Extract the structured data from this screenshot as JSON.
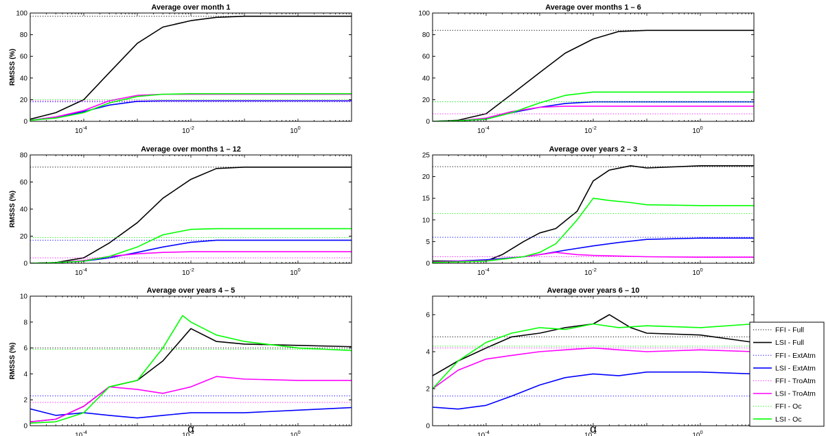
{
  "figure": {
    "xlabel": "α",
    "ylabel": "RMSSS (%)"
  },
  "legend": [
    {
      "label": "FFI - Full",
      "color": "#000000",
      "style": "dotted"
    },
    {
      "label": "LSI - Full",
      "color": "#000000",
      "style": "solid"
    },
    {
      "label": "FFI - ExtAtm",
      "color": "#0000ff",
      "style": "dotted"
    },
    {
      "label": "LSI - ExtAtm",
      "color": "#0000ff",
      "style": "solid"
    },
    {
      "label": "FFI - TroAtm",
      "color": "#ff00ff",
      "style": "dotted"
    },
    {
      "label": "LSI - TroAtm",
      "color": "#ff00ff",
      "style": "solid"
    },
    {
      "label": "FFI - Oc",
      "color": "#00ff00",
      "style": "dotted"
    },
    {
      "label": "LSI - Oc",
      "color": "#00ff00",
      "style": "solid"
    }
  ],
  "chart_data": [
    {
      "type": "line",
      "title": "Average over month 1",
      "xscale": "log",
      "xlim": [
        1e-05,
        10
      ],
      "xticks": [
        0.0001,
        0.01,
        1
      ],
      "xtick_labels": [
        "10^-4",
        "10^-2",
        "10^0"
      ],
      "ylim": [
        0,
        100
      ],
      "yticks": [
        0,
        20,
        40,
        60,
        80,
        100
      ],
      "series": [
        {
          "name": "FFI - Full",
          "ffi": 97
        },
        {
          "name": "LSI - Full",
          "x": [
            1e-05,
            3e-05,
            0.0001,
            0.0003,
            0.001,
            0.003,
            0.01,
            0.03,
            0.1,
            1,
            10
          ],
          "y": [
            2,
            8,
            20,
            45,
            72,
            87,
            93,
            96,
            97,
            97,
            97
          ]
        },
        {
          "name": "FFI - ExtAtm",
          "ffi": 18
        },
        {
          "name": "LSI - ExtAtm",
          "x": [
            1e-05,
            3e-05,
            0.0001,
            0.0003,
            0.001,
            0.003,
            0.01,
            0.1,
            10
          ],
          "y": [
            1,
            4,
            9,
            15,
            18.5,
            19,
            19,
            19,
            19
          ]
        },
        {
          "name": "FFI - TroAtm",
          "ffi": 19
        },
        {
          "name": "LSI - TroAtm",
          "x": [
            1e-05,
            3e-05,
            0.0001,
            0.0003,
            0.001,
            0.003,
            0.01,
            0.1,
            10
          ],
          "y": [
            1,
            4,
            10,
            19,
            24,
            25,
            25,
            25,
            25
          ]
        },
        {
          "name": "FFI - Oc",
          "ffi": 20
        },
        {
          "name": "LSI - Oc",
          "x": [
            1e-05,
            3e-05,
            0.0001,
            0.0003,
            0.001,
            0.003,
            0.01,
            0.1,
            10
          ],
          "y": [
            1,
            3,
            8,
            17,
            23,
            25,
            25.5,
            25.5,
            25.5
          ]
        }
      ]
    },
    {
      "type": "line",
      "title": "Average over months 1 – 6",
      "xscale": "log",
      "xlim": [
        1e-05,
        10
      ],
      "xticks": [
        0.0001,
        0.01,
        1
      ],
      "xtick_labels": [
        "10^-4",
        "10^-2",
        "10^0"
      ],
      "ylim": [
        0,
        100
      ],
      "yticks": [
        0,
        20,
        40,
        60,
        80,
        100
      ],
      "series": [
        {
          "name": "FFI - Full",
          "ffi": 84
        },
        {
          "name": "LSI - Full",
          "x": [
            1e-05,
            3e-05,
            0.0001,
            0.0003,
            0.001,
            0.003,
            0.01,
            0.03,
            0.1,
            1,
            10
          ],
          "y": [
            0,
            1,
            7,
            25,
            45,
            63,
            76,
            83,
            84,
            84,
            84
          ]
        },
        {
          "name": "FFI - ExtAtm",
          "ffi": 18
        },
        {
          "name": "LSI - ExtAtm",
          "x": [
            1e-05,
            3e-05,
            0.0001,
            0.0003,
            0.001,
            0.003,
            0.01,
            0.1,
            10
          ],
          "y": [
            0,
            0.5,
            2,
            8,
            13,
            16.5,
            18,
            18,
            18
          ]
        },
        {
          "name": "FFI - TroAtm",
          "ffi": 7
        },
        {
          "name": "LSI - TroAtm",
          "x": [
            1e-05,
            3e-05,
            0.0001,
            0.0003,
            0.001,
            0.003,
            0.01,
            0.1,
            10
          ],
          "y": [
            0,
            0.5,
            3,
            9,
            13,
            14,
            14,
            14,
            14
          ]
        },
        {
          "name": "FFI - Oc",
          "ffi": 18
        },
        {
          "name": "LSI - Oc",
          "x": [
            1e-05,
            3e-05,
            0.0001,
            0.0003,
            0.001,
            0.003,
            0.01,
            0.1,
            10
          ],
          "y": [
            0,
            0.5,
            2,
            8,
            17,
            24,
            27,
            27,
            27
          ]
        }
      ]
    },
    {
      "type": "line",
      "title": "Average over months 1 – 12",
      "xscale": "log",
      "xlim": [
        1e-05,
        10
      ],
      "xticks": [
        0.0001,
        0.01,
        1
      ],
      "xtick_labels": [
        "10^-4",
        "10^-2",
        "10^0"
      ],
      "ylim": [
        0,
        80
      ],
      "yticks": [
        0,
        20,
        40,
        60,
        80
      ],
      "series": [
        {
          "name": "FFI - Full",
          "ffi": 71
        },
        {
          "name": "LSI - Full",
          "x": [
            1e-05,
            3e-05,
            0.0001,
            0.0003,
            0.001,
            0.003,
            0.01,
            0.03,
            0.1,
            1,
            10
          ],
          "y": [
            0,
            0.5,
            4,
            15,
            30,
            48,
            62,
            70,
            71,
            71,
            71
          ]
        },
        {
          "name": "FFI - ExtAtm",
          "ffi": 17
        },
        {
          "name": "LSI - ExtAtm",
          "x": [
            1e-05,
            3e-05,
            0.0001,
            0.0003,
            0.001,
            0.003,
            0.01,
            0.03,
            0.1,
            10
          ],
          "y": [
            0,
            0.5,
            1.5,
            4,
            8,
            12,
            15.5,
            17,
            17,
            17
          ]
        },
        {
          "name": "FFI - TroAtm",
          "ffi": 4
        },
        {
          "name": "LSI - TroAtm",
          "x": [
            1e-05,
            3e-05,
            0.0001,
            0.0003,
            0.001,
            0.003,
            0.01,
            0.1,
            10
          ],
          "y": [
            0,
            0.5,
            2,
            5,
            7,
            8,
            8.5,
            8.5,
            8.5
          ]
        },
        {
          "name": "FFI - Oc",
          "ffi": 19
        },
        {
          "name": "LSI - Oc",
          "x": [
            1e-05,
            3e-05,
            0.0001,
            0.0003,
            0.001,
            0.003,
            0.01,
            0.03,
            0.1,
            10
          ],
          "y": [
            0,
            0.5,
            1.5,
            5,
            12,
            21,
            25,
            25.5,
            25.5,
            25.5
          ]
        }
      ]
    },
    {
      "type": "line",
      "title": "Average over years 2 – 3",
      "xscale": "log",
      "xlim": [
        1e-05,
        10
      ],
      "xticks": [
        0.0001,
        0.01,
        1
      ],
      "xtick_labels": [
        "10^-4",
        "10^-2",
        "10^0"
      ],
      "ylim": [
        0,
        25
      ],
      "yticks": [
        0,
        5,
        10,
        15,
        20,
        25
      ],
      "series": [
        {
          "name": "FFI - Full",
          "ffi": 22.3
        },
        {
          "name": "LSI - Full",
          "x": [
            1e-05,
            3e-05,
            0.0001,
            0.0002,
            0.0005,
            0.001,
            0.002,
            0.005,
            0.01,
            0.02,
            0.05,
            0.1,
            1,
            10
          ],
          "y": [
            0.5,
            0.5,
            0.5,
            2,
            5,
            7,
            8,
            12,
            19,
            21.5,
            22.5,
            22,
            22.5,
            22.5
          ]
        },
        {
          "name": "FFI - ExtAtm",
          "ffi": 6
        },
        {
          "name": "LSI - ExtAtm",
          "x": [
            1e-05,
            3e-05,
            0.0001,
            0.0005,
            0.001,
            0.003,
            0.01,
            0.03,
            0.1,
            1,
            10
          ],
          "y": [
            0.3,
            0.5,
            0.8,
            1.5,
            2,
            3,
            4,
            4.8,
            5.5,
            5.8,
            5.8
          ]
        },
        {
          "name": "FFI - TroAtm",
          "ffi": 1.5
        },
        {
          "name": "LSI - TroAtm",
          "x": [
            1e-05,
            0.0001,
            0.0005,
            0.001,
            0.002,
            0.005,
            0.01,
            0.1,
            1,
            10
          ],
          "y": [
            0.3,
            0.6,
            1.5,
            2,
            2.5,
            2,
            1.8,
            1.5,
            1.4,
            1.4
          ]
        },
        {
          "name": "FFI - Oc",
          "ffi": 11.5
        },
        {
          "name": "LSI - Oc",
          "x": [
            1e-05,
            3e-05,
            0.0001,
            0.0005,
            0.001,
            0.002,
            0.005,
            0.01,
            0.02,
            0.05,
            0.1,
            1,
            10
          ],
          "y": [
            0.2,
            0.3,
            0.5,
            1.5,
            2.5,
            4.5,
            10,
            15,
            14.5,
            14,
            13.5,
            13.3,
            13.3
          ]
        }
      ]
    },
    {
      "type": "line",
      "title": "Average over years 4 – 5",
      "xscale": "log",
      "xlim": [
        1e-05,
        10
      ],
      "xticks": [
        0.0001,
        0.01,
        1
      ],
      "xtick_labels": [
        "10^-4",
        "10^-2",
        "10^0"
      ],
      "ylim": [
        0,
        10
      ],
      "yticks": [
        0,
        2,
        4,
        6,
        8,
        10
      ],
      "series": [
        {
          "name": "FFI - Full",
          "ffi": 6
        },
        {
          "name": "LSI - Full",
          "x": [
            1e-05,
            3e-05,
            0.0001,
            0.0003,
            0.001,
            0.003,
            0.01,
            0.03,
            0.1,
            1,
            10
          ],
          "y": [
            0.3,
            0.5,
            1.5,
            3,
            3.5,
            5,
            7.5,
            6.5,
            6.3,
            6.2,
            6.1
          ]
        },
        {
          "name": "FFI - ExtAtm",
          "ffi": 2.3
        },
        {
          "name": "LSI - ExtAtm",
          "x": [
            1e-05,
            3e-05,
            0.0001,
            0.0003,
            0.001,
            0.003,
            0.01,
            0.1,
            1,
            10
          ],
          "y": [
            1.3,
            0.8,
            1,
            0.8,
            0.6,
            0.8,
            1,
            1,
            1.2,
            1.4
          ]
        },
        {
          "name": "FFI - TroAtm",
          "ffi": 1.8
        },
        {
          "name": "LSI - TroAtm",
          "x": [
            1e-05,
            3e-05,
            0.0001,
            0.0003,
            0.001,
            0.003,
            0.01,
            0.03,
            0.1,
            1,
            10
          ],
          "y": [
            0.3,
            0.5,
            1.5,
            3,
            2.8,
            2.5,
            3,
            3.8,
            3.6,
            3.5,
            3.5
          ]
        },
        {
          "name": "FFI - Oc",
          "ffi": 5.9
        },
        {
          "name": "LSI - Oc",
          "x": [
            1e-05,
            3e-05,
            0.0001,
            0.0003,
            0.001,
            0.003,
            0.007,
            0.01,
            0.03,
            0.1,
            1,
            10
          ],
          "y": [
            0.2,
            0.3,
            1,
            3,
            3.5,
            6,
            8.5,
            8,
            7,
            6.5,
            6,
            5.8
          ]
        }
      ]
    },
    {
      "type": "line",
      "title": "Average over years 6 – 10",
      "xscale": "log",
      "xlim": [
        1e-05,
        10
      ],
      "xticks": [
        0.0001,
        0.01,
        1
      ],
      "xtick_labels": [
        "10^-4",
        "10^-2",
        "10^0"
      ],
      "ylim": [
        0,
        7
      ],
      "yticks": [
        0,
        2,
        4,
        6
      ],
      "series": [
        {
          "name": "FFI - Full",
          "ffi": 4.8
        },
        {
          "name": "LSI - Full",
          "x": [
            1e-05,
            3e-05,
            0.0001,
            0.0003,
            0.001,
            0.003,
            0.01,
            0.02,
            0.05,
            0.1,
            1,
            10
          ],
          "y": [
            2.7,
            3.5,
            4.2,
            4.8,
            5,
            5.3,
            5.5,
            6,
            5.3,
            5,
            4.9,
            4.5
          ]
        },
        {
          "name": "FFI - ExtAtm",
          "ffi": 1.6
        },
        {
          "name": "LSI - ExtAtm",
          "x": [
            1e-05,
            3e-05,
            0.0001,
            0.0003,
            0.001,
            0.003,
            0.01,
            0.03,
            0.1,
            1,
            10
          ],
          "y": [
            1,
            0.9,
            1.1,
            1.6,
            2.2,
            2.6,
            2.8,
            2.7,
            2.9,
            2.9,
            2.8
          ]
        },
        {
          "name": "FFI - TroAtm",
          "ffi": 4.2
        },
        {
          "name": "LSI - TroAtm",
          "x": [
            1e-05,
            3e-05,
            0.0001,
            0.0003,
            0.001,
            0.003,
            0.01,
            0.03,
            0.1,
            1,
            10
          ],
          "y": [
            2,
            3,
            3.6,
            3.8,
            4,
            4.1,
            4.2,
            4.1,
            4,
            4.1,
            4
          ]
        },
        {
          "name": "FFI - Oc",
          "ffi": 4.3
        },
        {
          "name": "LSI - Oc",
          "x": [
            1e-05,
            3e-05,
            0.0001,
            0.0003,
            0.001,
            0.003,
            0.01,
            0.03,
            0.1,
            1,
            10
          ],
          "y": [
            2,
            3.5,
            4.5,
            5,
            5.3,
            5.2,
            5.5,
            5.3,
            5.4,
            5.3,
            5.5
          ]
        }
      ]
    }
  ]
}
